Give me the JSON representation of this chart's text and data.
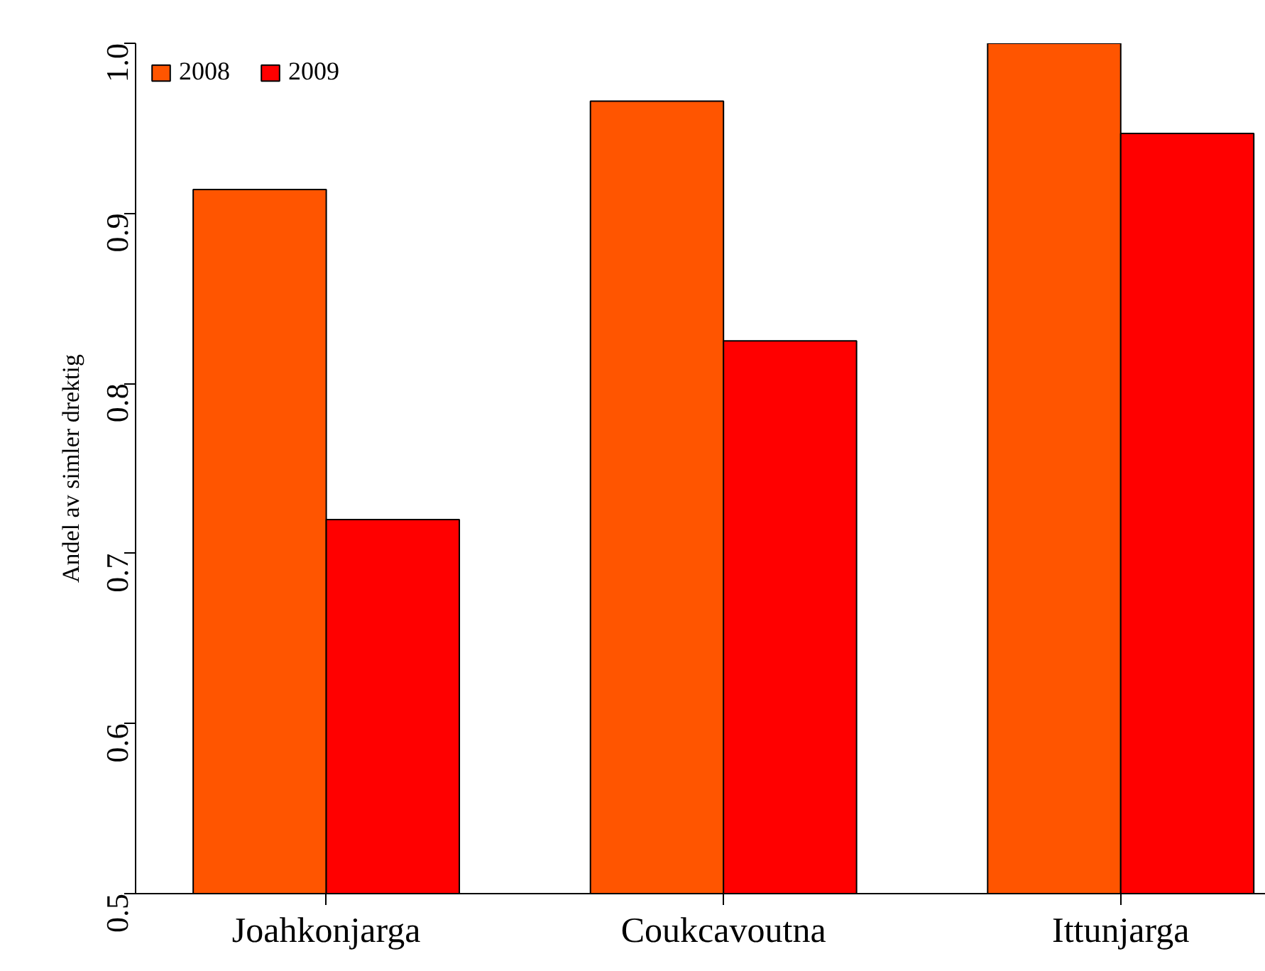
{
  "chart_data": {
    "type": "bar",
    "ylabel": "Andel av simler drektig",
    "categories": [
      "Joahkonjarga",
      "Coukcavoutna",
      "Ittunjarga"
    ],
    "series": [
      {
        "name": "2008",
        "color": "#ff5500",
        "values": [
          0.914,
          0.966,
          1.0
        ]
      },
      {
        "name": "2009",
        "color": "#ff0000",
        "values": [
          0.72,
          0.825,
          0.947
        ]
      }
    ],
    "ylim": [
      0.5,
      1.0
    ],
    "yticks": [
      0.5,
      0.6,
      0.7,
      0.8,
      0.9,
      {
        "value": 1,
        "label": "1.0"
      }
    ],
    "grid": false,
    "legend": "top left"
  }
}
